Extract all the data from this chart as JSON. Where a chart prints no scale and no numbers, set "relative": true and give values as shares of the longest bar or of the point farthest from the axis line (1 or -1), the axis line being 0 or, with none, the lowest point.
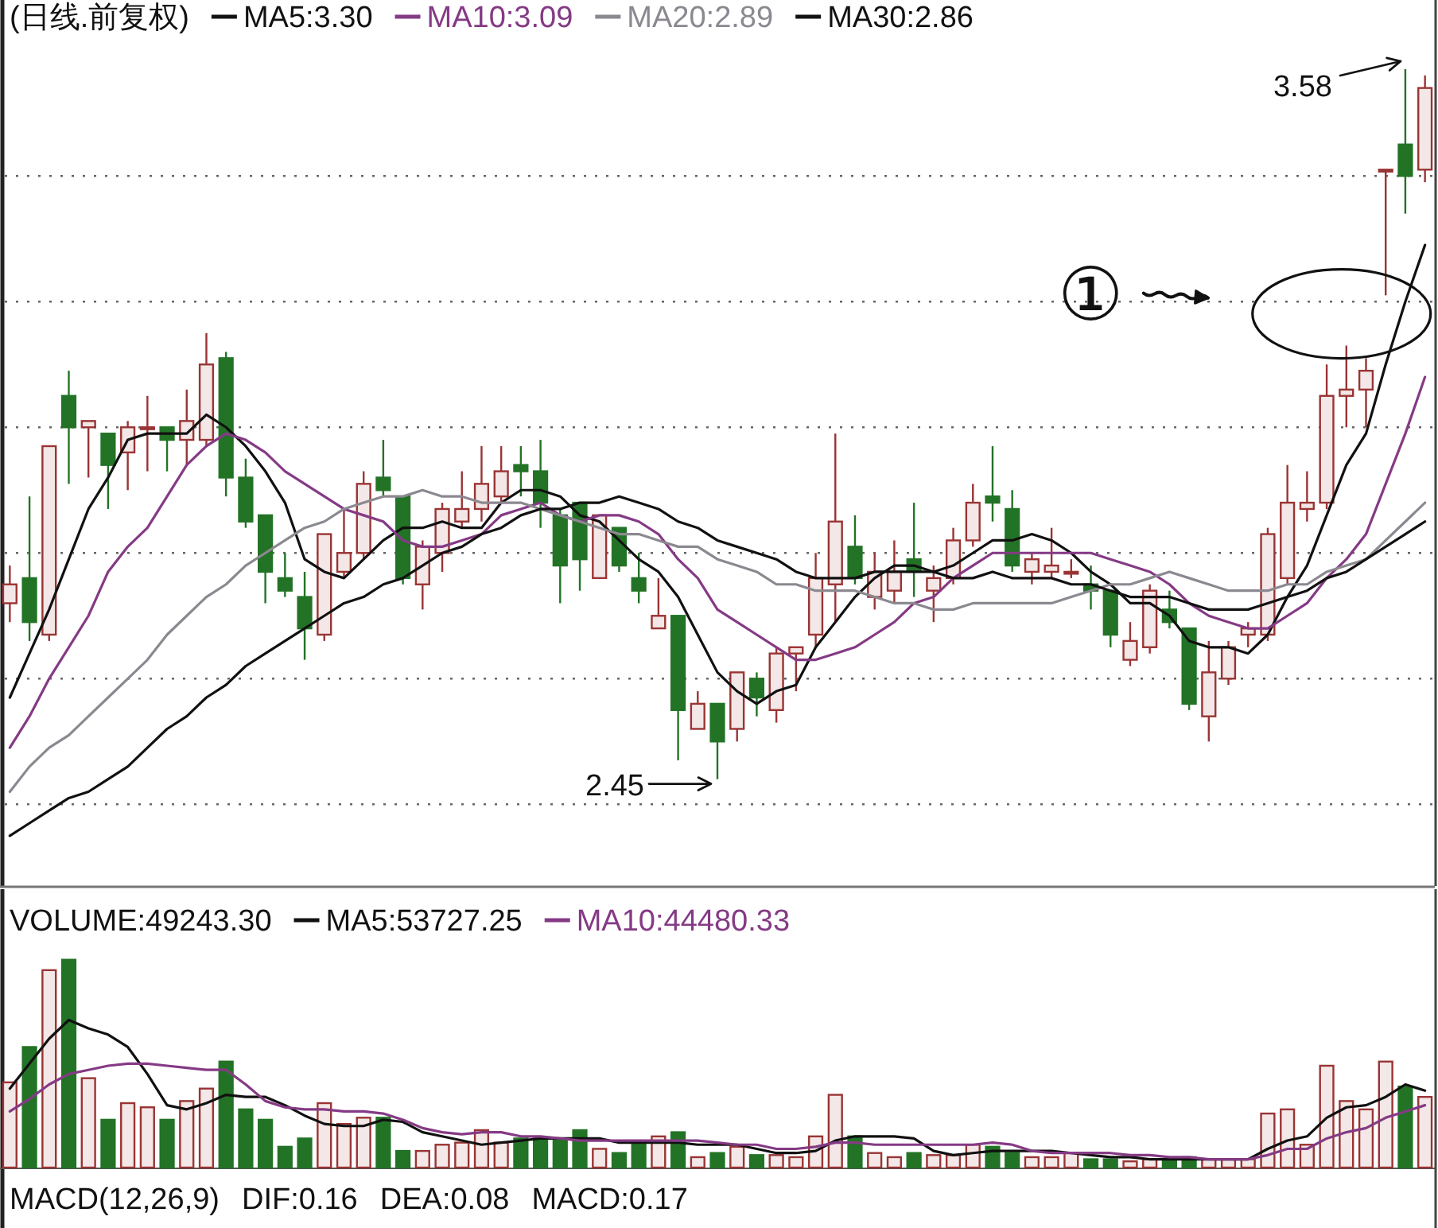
{
  "chart_data": [
    {
      "type": "candlestick",
      "title": "(日线.前复权)",
      "categories": [
        null,
        null,
        null,
        null,
        null,
        null,
        null,
        null,
        null,
        null,
        null,
        null,
        null,
        null,
        null,
        null,
        null,
        null,
        null,
        null,
        null,
        null,
        null,
        null,
        null,
        null,
        null,
        null,
        null,
        null,
        null,
        null,
        null,
        null,
        null,
        null,
        null,
        null,
        null,
        null,
        null,
        null,
        null,
        null,
        null,
        null,
        null,
        null,
        null,
        null,
        null,
        null,
        null,
        null,
        null,
        null,
        null,
        null,
        null,
        null,
        null,
        null,
        null,
        null,
        null,
        null,
        null,
        null,
        null,
        null,
        null,
        null,
        null
      ],
      "ohlc": [
        [
          2.73,
          2.79,
          2.7,
          2.76
        ],
        [
          2.77,
          2.9,
          2.67,
          2.7
        ],
        [
          2.68,
          2.98,
          2.67,
          2.98
        ],
        [
          3.06,
          3.1,
          2.92,
          3.01
        ],
        [
          3.01,
          3.02,
          2.93,
          3.02
        ],
        [
          3.0,
          3.0,
          2.88,
          2.95
        ],
        [
          2.97,
          3.02,
          2.91,
          3.01
        ],
        [
          3.01,
          3.06,
          2.94,
          3.01
        ],
        [
          3.01,
          3.01,
          2.94,
          2.99
        ],
        [
          2.99,
          3.07,
          2.95,
          3.02
        ],
        [
          2.99,
          3.16,
          2.98,
          3.11
        ],
        [
          3.12,
          3.13,
          2.9,
          2.93
        ],
        [
          2.93,
          2.96,
          2.85,
          2.86
        ],
        [
          2.87,
          2.87,
          2.73,
          2.78
        ],
        [
          2.77,
          2.81,
          2.74,
          2.75
        ],
        [
          2.74,
          2.78,
          2.64,
          2.69
        ],
        [
          2.68,
          2.84,
          2.67,
          2.84
        ],
        [
          2.78,
          2.88,
          2.77,
          2.81
        ],
        [
          2.81,
          2.94,
          2.8,
          2.92
        ],
        [
          2.93,
          2.99,
          2.9,
          2.91
        ],
        [
          2.9,
          2.9,
          2.76,
          2.77
        ],
        [
          2.76,
          2.83,
          2.72,
          2.82
        ],
        [
          2.81,
          2.89,
          2.78,
          2.88
        ],
        [
          2.86,
          2.94,
          2.85,
          2.88
        ],
        [
          2.88,
          2.98,
          2.86,
          2.92
        ],
        [
          2.9,
          2.98,
          2.89,
          2.94
        ],
        [
          2.95,
          2.98,
          2.9,
          2.94
        ],
        [
          2.94,
          2.99,
          2.85,
          2.89
        ],
        [
          2.87,
          2.88,
          2.73,
          2.79
        ],
        [
          2.89,
          2.89,
          2.75,
          2.8
        ],
        [
          2.77,
          2.87,
          2.77,
          2.87
        ],
        [
          2.85,
          2.85,
          2.78,
          2.79
        ],
        [
          2.77,
          2.81,
          2.73,
          2.75
        ],
        [
          2.69,
          2.77,
          2.69,
          2.71
        ],
        [
          2.71,
          2.71,
          2.48,
          2.56
        ],
        [
          2.53,
          2.59,
          2.53,
          2.57
        ],
        [
          2.57,
          2.57,
          2.45,
          2.51
        ],
        [
          2.53,
          2.62,
          2.51,
          2.62
        ],
        [
          2.61,
          2.62,
          2.55,
          2.58
        ],
        [
          2.56,
          2.66,
          2.54,
          2.65
        ],
        [
          2.65,
          2.66,
          2.59,
          2.66
        ],
        [
          2.68,
          2.81,
          2.66,
          2.77
        ],
        [
          2.76,
          3.0,
          2.7,
          2.86
        ],
        [
          2.82,
          2.87,
          2.76,
          2.77
        ],
        [
          2.74,
          2.81,
          2.72,
          2.78
        ],
        [
          2.75,
          2.83,
          2.73,
          2.78
        ],
        [
          2.8,
          2.89,
          2.74,
          2.78
        ],
        [
          2.75,
          2.79,
          2.7,
          2.77
        ],
        [
          2.77,
          2.85,
          2.76,
          2.83
        ],
        [
          2.83,
          2.92,
          2.82,
          2.89
        ],
        [
          2.9,
          2.98,
          2.86,
          2.89
        ],
        [
          2.88,
          2.91,
          2.78,
          2.79
        ],
        [
          2.78,
          2.81,
          2.76,
          2.8
        ],
        [
          2.78,
          2.85,
          2.77,
          2.79
        ],
        [
          2.78,
          2.8,
          2.77,
          2.78
        ],
        [
          2.76,
          2.79,
          2.72,
          2.75
        ],
        [
          2.75,
          2.75,
          2.66,
          2.68
        ],
        [
          2.64,
          2.7,
          2.63,
          2.67
        ],
        [
          2.66,
          2.76,
          2.65,
          2.75
        ],
        [
          2.72,
          2.75,
          2.69,
          2.7
        ],
        [
          2.69,
          2.69,
          2.56,
          2.57
        ],
        [
          2.55,
          2.67,
          2.51,
          2.62
        ],
        [
          2.61,
          2.67,
          2.6,
          2.66
        ],
        [
          2.68,
          2.7,
          2.66,
          2.69
        ],
        [
          2.68,
          2.85,
          2.67,
          2.84
        ],
        [
          2.77,
          2.95,
          2.76,
          2.89
        ],
        [
          2.88,
          2.94,
          2.86,
          2.89
        ],
        [
          2.89,
          3.11,
          2.88,
          3.06
        ],
        [
          3.06,
          3.14,
          3.01,
          3.07
        ],
        [
          3.07,
          3.12,
          3.01,
          3.1
        ],
        [
          3.42,
          3.42,
          3.22,
          3.42
        ],
        [
          3.46,
          3.58,
          3.35,
          3.41
        ],
        [
          3.42,
          3.57,
          3.4,
          3.55
        ]
      ],
      "colors": [
        "#9a3434",
        "#237326",
        "#9a3434",
        "#237326",
        "#9a3434",
        "#237326",
        "#9a3434",
        "#9a3434",
        "#237326",
        "#9a3434",
        "#9a3434",
        "#237326",
        "#237326",
        "#237326",
        "#237326",
        "#237326",
        "#9a3434",
        "#9a3434",
        "#9a3434",
        "#237326",
        "#237326",
        "#9a3434",
        "#9a3434",
        "#9a3434",
        "#9a3434",
        "#9a3434",
        "#237326",
        "#237326",
        "#237326",
        "#237326",
        "#9a3434",
        "#237326",
        "#237326",
        "#9a3434",
        "#237326",
        "#9a3434",
        "#237326",
        "#9a3434",
        "#237326",
        "#9a3434",
        "#9a3434",
        "#9a3434",
        "#9a3434",
        "#237326",
        "#9a3434",
        "#9a3434",
        "#237326",
        "#9a3434",
        "#9a3434",
        "#9a3434",
        "#237326",
        "#237326",
        "#9a3434",
        "#9a3434",
        "#9a3434",
        "#237326",
        "#237326",
        "#9a3434",
        "#9a3434",
        "#237326",
        "#237326",
        "#9a3434",
        "#9a3434",
        "#9a3434",
        "#9a3434",
        "#9a3434",
        "#9a3434",
        "#9a3434",
        "#9a3434",
        "#9a3434",
        "#9a3434",
        "#237326",
        "#9a3434"
      ],
      "series": [
        {
          "name": "MA5:3.30",
          "type": "line",
          "color": "#111111",
          "values": [
            2.58,
            2.65,
            2.72,
            2.8,
            2.88,
            2.93,
            2.99,
            3.0,
            3.0,
            3.0,
            3.03,
            3.01,
            2.98,
            2.94,
            2.89,
            2.8,
            2.78,
            2.77,
            2.8,
            2.83,
            2.85,
            2.85,
            2.86,
            2.85,
            2.85,
            2.89,
            2.91,
            2.91,
            2.9,
            2.87,
            2.86,
            2.83,
            2.8,
            2.78,
            2.74,
            2.68,
            2.62,
            2.59,
            2.57,
            2.59,
            2.6,
            2.66,
            2.7,
            2.74,
            2.77,
            2.79,
            2.79,
            2.78,
            2.79,
            2.81,
            2.83,
            2.83,
            2.84,
            2.83,
            2.81,
            2.78,
            2.76,
            2.73,
            2.73,
            2.71,
            2.67,
            2.66,
            2.66,
            2.65,
            2.68,
            2.74,
            2.79,
            2.87,
            2.95,
            3.0,
            3.11,
            3.21,
            3.3
          ]
        },
        {
          "name": "MA10:3.09",
          "type": "line",
          "color": "#853a85",
          "values": [
            2.5,
            2.55,
            2.61,
            2.66,
            2.71,
            2.78,
            2.82,
            2.85,
            2.9,
            2.95,
            2.98,
            3.0,
            2.99,
            2.97,
            2.94,
            2.92,
            2.9,
            2.88,
            2.87,
            2.86,
            2.83,
            2.82,
            2.82,
            2.83,
            2.84,
            2.87,
            2.88,
            2.89,
            2.87,
            2.86,
            2.87,
            2.87,
            2.86,
            2.84,
            2.8,
            2.77,
            2.72,
            2.7,
            2.68,
            2.66,
            2.64,
            2.64,
            2.65,
            2.66,
            2.68,
            2.7,
            2.73,
            2.74,
            2.77,
            2.79,
            2.81,
            2.81,
            2.81,
            2.81,
            2.81,
            2.81,
            2.8,
            2.79,
            2.78,
            2.76,
            2.73,
            2.71,
            2.7,
            2.69,
            2.69,
            2.71,
            2.73,
            2.77,
            2.8,
            2.84,
            2.92,
            3.0,
            3.09
          ]
        },
        {
          "name": "MA20:2.89",
          "type": "line",
          "color": "#8c8890",
          "values": [
            2.43,
            2.47,
            2.5,
            2.52,
            2.55,
            2.58,
            2.61,
            2.64,
            2.68,
            2.71,
            2.74,
            2.76,
            2.79,
            2.81,
            2.83,
            2.85,
            2.86,
            2.88,
            2.89,
            2.9,
            2.9,
            2.91,
            2.9,
            2.9,
            2.89,
            2.89,
            2.89,
            2.88,
            2.87,
            2.86,
            2.85,
            2.84,
            2.84,
            2.83,
            2.82,
            2.82,
            2.8,
            2.79,
            2.78,
            2.76,
            2.76,
            2.75,
            2.75,
            2.75,
            2.74,
            2.73,
            2.73,
            2.72,
            2.72,
            2.73,
            2.73,
            2.73,
            2.73,
            2.73,
            2.74,
            2.75,
            2.76,
            2.76,
            2.77,
            2.78,
            2.77,
            2.76,
            2.75,
            2.75,
            2.75,
            2.76,
            2.76,
            2.78,
            2.79,
            2.8,
            2.83,
            2.86,
            2.89
          ]
        },
        {
          "name": "MA30:2.86",
          "type": "line",
          "color": "#111111",
          "values": [
            2.36,
            2.38,
            2.4,
            2.42,
            2.43,
            2.45,
            2.47,
            2.5,
            2.53,
            2.55,
            2.58,
            2.6,
            2.63,
            2.65,
            2.67,
            2.69,
            2.71,
            2.73,
            2.74,
            2.76,
            2.77,
            2.79,
            2.81,
            2.82,
            2.84,
            2.85,
            2.87,
            2.88,
            2.88,
            2.89,
            2.89,
            2.9,
            2.89,
            2.88,
            2.86,
            2.85,
            2.83,
            2.82,
            2.81,
            2.8,
            2.78,
            2.77,
            2.77,
            2.77,
            2.78,
            2.78,
            2.78,
            2.78,
            2.77,
            2.77,
            2.78,
            2.77,
            2.77,
            2.77,
            2.76,
            2.76,
            2.75,
            2.74,
            2.74,
            2.74,
            2.73,
            2.72,
            2.72,
            2.72,
            2.73,
            2.74,
            2.75,
            2.77,
            2.78,
            2.8,
            2.82,
            2.84,
            2.86
          ]
        }
      ],
      "ylim": [
        2.28,
        3.69
      ],
      "yticks": [
        {
          "value": 2.41,
          "label": null
        },
        {
          "value": 2.61,
          "label": null
        },
        {
          "value": 2.81,
          "label": null
        },
        {
          "value": 3.01,
          "label": null
        },
        {
          "value": 3.21,
          "label": null
        },
        {
          "value": 3.41,
          "label": null
        }
      ],
      "grid": "y",
      "legend": "top left",
      "annotations": [
        "3.58",
        "2.45",
        "①"
      ]
    },
    {
      "type": "bar",
      "title": "VOLUME:49243.30",
      "relative": true,
      "categories": [
        null,
        null,
        null,
        null,
        null,
        null,
        null,
        null,
        null,
        null,
        null,
        null,
        null,
        null,
        null,
        null,
        null,
        null,
        null,
        null,
        null,
        null,
        null,
        null,
        null,
        null,
        null,
        null,
        null,
        null,
        null,
        null,
        null,
        null,
        null,
        null,
        null,
        null,
        null,
        null,
        null,
        null,
        null,
        null,
        null,
        null,
        null,
        null,
        null,
        null,
        null,
        null,
        null,
        null,
        null,
        null,
        null,
        null,
        null,
        null,
        null,
        null,
        null,
        null,
        null,
        null,
        null,
        null,
        null,
        null,
        null,
        null,
        null
      ],
      "series": [
        {
          "type": "bar",
          "colors": [
            "#9a3434",
            "#237326",
            "#9a3434",
            "#237326",
            "#9a3434",
            "#237326",
            "#9a3434",
            "#9a3434",
            "#237326",
            "#9a3434",
            "#9a3434",
            "#237326",
            "#237326",
            "#237326",
            "#237326",
            "#237326",
            "#9a3434",
            "#9a3434",
            "#9a3434",
            "#237326",
            "#237326",
            "#9a3434",
            "#9a3434",
            "#9a3434",
            "#9a3434",
            "#9a3434",
            "#237326",
            "#237326",
            "#237326",
            "#237326",
            "#9a3434",
            "#237326",
            "#237326",
            "#9a3434",
            "#237326",
            "#9a3434",
            "#237326",
            "#9a3434",
            "#237326",
            "#9a3434",
            "#9a3434",
            "#9a3434",
            "#9a3434",
            "#237326",
            "#9a3434",
            "#9a3434",
            "#237326",
            "#9a3434",
            "#9a3434",
            "#9a3434",
            "#237326",
            "#237326",
            "#9a3434",
            "#9a3434",
            "#9a3434",
            "#237326",
            "#237326",
            "#9a3434",
            "#9a3434",
            "#237326",
            "#237326",
            "#9a3434",
            "#9a3434",
            "#9a3434",
            "#9a3434",
            "#9a3434",
            "#9a3434",
            "#9a3434",
            "#9a3434",
            "#9a3434",
            "#9a3434",
            "#237326",
            "#9a3434"
          ],
          "values": [
            0.41,
            0.58,
            0.95,
            1,
            0.43,
            0.23,
            0.31,
            0.29,
            0.23,
            0.32,
            0.38,
            0.51,
            0.28,
            0.23,
            0.1,
            0.14,
            0.31,
            0.21,
            0.24,
            0.24,
            0.08,
            0.08,
            0.11,
            0.12,
            0.18,
            0.12,
            0.14,
            0.14,
            0.14,
            0.18,
            0.09,
            0.07,
            0.12,
            0.15,
            0.17,
            0.05,
            0.07,
            0.1,
            0.06,
            0.06,
            0.05,
            0.15,
            0.35,
            0.15,
            0.07,
            0.05,
            0.07,
            0.06,
            0.06,
            0.11,
            0.1,
            0.07,
            0.05,
            0.05,
            0.07,
            0.04,
            0.04,
            0.03,
            0.04,
            0.03,
            0.05,
            0.04,
            0.04,
            0.04,
            0.26,
            0.28,
            0.11,
            0.49,
            0.32,
            0.28,
            0.51,
            0.39,
            0.34
          ]
        },
        {
          "name": "MA5:53727.25",
          "type": "line",
          "color": "#111111",
          "values": [
            0.38,
            0.5,
            0.62,
            0.71,
            0.67,
            0.64,
            0.58,
            0.45,
            0.3,
            0.28,
            0.31,
            0.35,
            0.34,
            0.34,
            0.3,
            0.25,
            0.21,
            0.2,
            0.2,
            0.23,
            0.22,
            0.17,
            0.15,
            0.13,
            0.11,
            0.12,
            0.13,
            0.14,
            0.14,
            0.14,
            0.14,
            0.12,
            0.12,
            0.12,
            0.12,
            0.11,
            0.11,
            0.11,
            0.09,
            0.07,
            0.07,
            0.08,
            0.13,
            0.15,
            0.15,
            0.15,
            0.14,
            0.08,
            0.06,
            0.07,
            0.08,
            0.08,
            0.08,
            0.08,
            0.07,
            0.06,
            0.05,
            0.05,
            0.04,
            0.04,
            0.04,
            0.04,
            0.04,
            0.04,
            0.09,
            0.13,
            0.15,
            0.24,
            0.29,
            0.3,
            0.34,
            0.4,
            0.37
          ]
        },
        {
          "name": "MA10:44480.33",
          "type": "line",
          "color": "#853a85",
          "values": [
            0.27,
            0.33,
            0.4,
            0.45,
            0.47,
            0.49,
            0.5,
            0.5,
            0.49,
            0.48,
            0.47,
            0.47,
            0.4,
            0.32,
            0.29,
            0.28,
            0.28,
            0.27,
            0.27,
            0.26,
            0.23,
            0.19,
            0.17,
            0.16,
            0.17,
            0.17,
            0.15,
            0.15,
            0.14,
            0.13,
            0.13,
            0.13,
            0.13,
            0.13,
            0.13,
            0.13,
            0.12,
            0.11,
            0.11,
            0.09,
            0.09,
            0.1,
            0.12,
            0.12,
            0.11,
            0.11,
            0.11,
            0.11,
            0.11,
            0.11,
            0.12,
            0.11,
            0.08,
            0.07,
            0.07,
            0.07,
            0.07,
            0.06,
            0.06,
            0.05,
            0.05,
            0.04,
            0.04,
            0.04,
            0.06,
            0.09,
            0.09,
            0.14,
            0.17,
            0.19,
            0.24,
            0.27,
            0.3
          ]
        }
      ],
      "legend": "top left",
      "annotations": [
        "MACD(12,26,9)",
        "DIF:0.16",
        "DEA:0.08",
        "MACD:0.17"
      ]
    }
  ]
}
